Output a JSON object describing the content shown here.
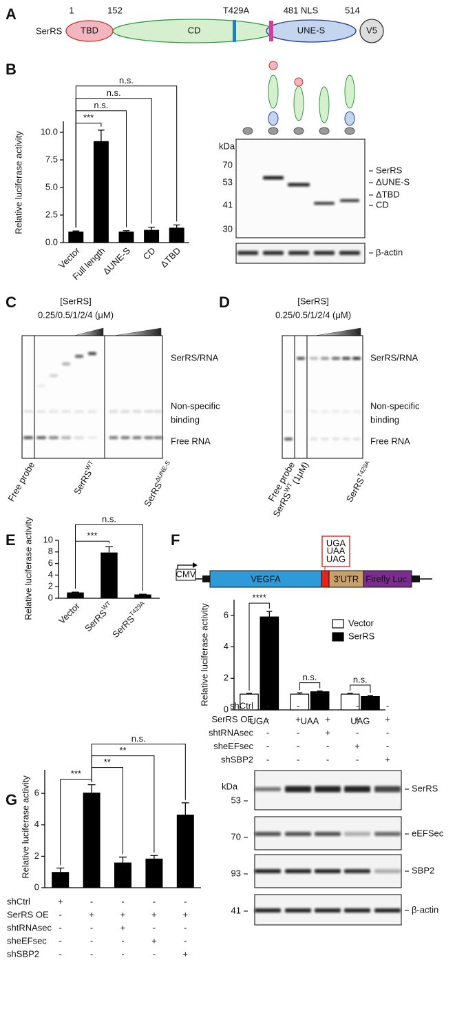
{
  "panel_labels": [
    "A",
    "B",
    "C",
    "D",
    "E",
    "F",
    "G"
  ],
  "domain_map": {
    "protein": "SerRS",
    "positions": [
      "1",
      "152",
      "T429A",
      "481 NLS",
      "514"
    ],
    "domains": [
      "TBD",
      "CD",
      "UNE-S",
      "V5"
    ]
  },
  "chart_data": [
    {
      "type": "bar",
      "y_label": "Relative luciferase activity",
      "categories": [
        "Vector",
        "Full length",
        "ΔUNE-S",
        "CD",
        "ΔTBD"
      ],
      "values": [
        1.0,
        9.2,
        1.0,
        1.15,
        1.35
      ],
      "errors": [
        0.05,
        1.0,
        0.08,
        0.25,
        0.25
      ],
      "color": "#000000",
      "ylim": [
        0,
        11
      ],
      "yticks": [
        {
          "value": 0,
          "label": "0.0"
        },
        2.5,
        {
          "value": 5,
          "label": "5.0"
        },
        7.5,
        {
          "value": 10,
          "label": "10.0"
        }
      ],
      "annotations": [
        "***",
        "n.s.",
        "n.s.",
        "n.s."
      ]
    },
    {
      "type": "bar",
      "y_label": "Relative luciferase activity",
      "categories": [
        "Vector",
        "SerRS",
        "SerRS"
      ],
      "category_superscripts": [
        null,
        "WT",
        "T429A"
      ],
      "values": [
        1.0,
        7.9,
        0.65
      ],
      "errors": [
        0.05,
        1.0,
        0.05
      ],
      "color": "#000000",
      "ylim": [
        0,
        10
      ],
      "yticks": [
        0,
        2,
        4,
        6,
        8,
        10
      ],
      "annotations": [
        "***",
        "n.s."
      ]
    },
    {
      "type": "grouped_bar",
      "y_label": "Relative luciferase activity",
      "categories": [
        "UGA",
        "UAA",
        "UAG"
      ],
      "series": [
        {
          "name": "Vector",
          "color": "#ffffff",
          "values": [
            1.0,
            1.0,
            1.0
          ],
          "errors": [
            0.05,
            0.08,
            0.05
          ]
        },
        {
          "name": "SerRS",
          "color": "#000000",
          "values": [
            5.9,
            1.15,
            0.85
          ],
          "errors": [
            0.35,
            0.05,
            0.05
          ]
        }
      ],
      "ylim": [
        0,
        7
      ],
      "yticks": [
        0,
        2,
        4,
        6
      ],
      "legend": "upper right",
      "annotations": [
        "****",
        "n.s.",
        "n.s."
      ]
    },
    {
      "type": "bar",
      "y_label": "Relative luciferase activity",
      "values": [
        1.0,
        6.05,
        1.6,
        1.85,
        4.65
      ],
      "errors": [
        0.25,
        0.5,
        0.35,
        0.2,
        0.75
      ],
      "color": "#000000",
      "ylim": [
        0,
        7.5
      ],
      "yticks": [
        0,
        2,
        4,
        6
      ],
      "annotations": [
        "***",
        "**",
        "**",
        "n.s."
      ]
    }
  ],
  "blot_b": {
    "unit": "kDa",
    "markers": [
      70,
      53,
      41,
      30
    ],
    "bands": [
      "SerRS",
      "ΔUNE-S",
      "ΔTBD",
      "CD"
    ],
    "loading": "β-actin"
  },
  "emsa_c": {
    "title": "[SerRS]",
    "range": "0.25/0.5/1/2/4 (μM)",
    "complex": "SerRS/RNA",
    "nonspecific": [
      "Non-specific",
      "binding"
    ],
    "free": "Free RNA",
    "lanes": [
      {
        "name": "Free probe"
      },
      {
        "name": "SerRS",
        "sup": "WT"
      },
      {
        "name": "SerRS",
        "sup": "ΔUNE-S"
      }
    ]
  },
  "emsa_d": {
    "title": "[SerRS]",
    "range": "0.25/0.5/1/2/4 (μM)",
    "complex": "SerRS/RNA",
    "nonspecific": [
      "Non-specific",
      "binding"
    ],
    "free": "Free RNA",
    "lanes": [
      {
        "name": "Free probe"
      },
      {
        "name": "SerRS",
        "sup": "WT",
        "suffix": "(1μM)"
      },
      {
        "name": "SerRS",
        "sup": "T429A"
      }
    ]
  },
  "construct_f": {
    "promoter": "CMV",
    "cds": "VEGFA",
    "stop_codons": [
      "UGA",
      "UAA",
      "UAG"
    ],
    "utr": "3′UTR",
    "reporter": "Firefly Luc."
  },
  "treatments": [
    {
      "name": "shCtrl",
      "signs": [
        "+",
        "-",
        "-",
        "-",
        "-"
      ]
    },
    {
      "name": "SerRS OE",
      "signs": [
        "-",
        "+",
        "+",
        "+",
        "+"
      ]
    },
    {
      "name": "shtRNAsec",
      "signs": [
        "-",
        "-",
        "+",
        "-",
        "-"
      ]
    },
    {
      "name": "sheEFsec",
      "signs": [
        "-",
        "-",
        "-",
        "+",
        "-"
      ]
    },
    {
      "name": "shSBP2",
      "signs": [
        "-",
        "-",
        "-",
        "-",
        "+"
      ]
    }
  ],
  "blot_g": {
    "unit": "kDa",
    "rows": [
      {
        "marker": 53,
        "label": "SerRS"
      },
      {
        "marker": 70,
        "label": "eEFSec"
      },
      {
        "marker": 93,
        "label": "SBP2"
      },
      {
        "marker": 41,
        "label": "β-actin"
      }
    ]
  }
}
